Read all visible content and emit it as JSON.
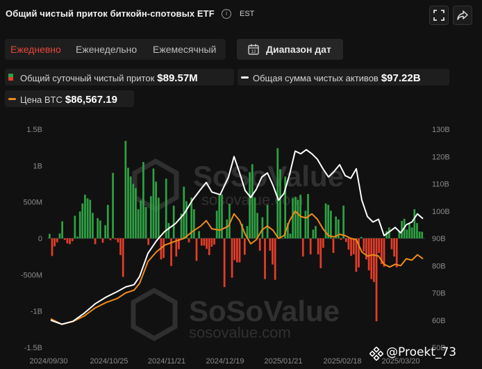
{
  "header": {
    "title": "Общий чистый приток биткойн-спотовых ETF",
    "info_glyph": "i",
    "timezone": "EST",
    "icons": [
      "info-icon",
      "expand-icon",
      "share-icon"
    ]
  },
  "periods": {
    "daily": "Ежедневно",
    "weekly": "Еженедельно",
    "monthly": "Ежемесячный",
    "active": "daily"
  },
  "range_button": {
    "label": "Диапазон дат",
    "icon": "calendar-icon"
  },
  "legend": {
    "inflow_label": "Общий суточный чистый приток",
    "inflow_value": "$89.57M",
    "assets_label": "Общая сумма чистых активов",
    "assets_value": "$97.22B",
    "btc_label": "Цена BTC",
    "btc_value": "$86,567.19"
  },
  "watermark": {
    "brand": "SoSoValue",
    "url": "sosovalue.com"
  },
  "credit": {
    "text": "@Proekt_73",
    "icon": "binance-icon"
  },
  "colors": {
    "inflow_positive": "#2ea043",
    "inflow_negative": "#e23d2a",
    "net_assets_line": "#ffffff",
    "btc_price_line": "#f08c1a",
    "active_period": "#e8473a",
    "background": "#111111"
  },
  "chart_data": {
    "type": "bar",
    "x_ticks": [
      "2024/09/30",
      "2024/10/25",
      "2024/11/21",
      "2024/12/19",
      "2025/01/21",
      "2025/02/18",
      "2025/03/20"
    ],
    "left_axis": {
      "ticks": [
        "1.5B",
        "1B",
        "500M",
        "0",
        "-500M",
        "-1B",
        "-1.5B"
      ],
      "range": [
        -1500,
        1500
      ],
      "unit": "M USD"
    },
    "right_axis": {
      "ticks": [
        "130B",
        "120B",
        "110B",
        "100B",
        "90B",
        "80B",
        "70B",
        "60B",
        "50B"
      ],
      "range": [
        50,
        130
      ],
      "unit": "B USD"
    },
    "series": [
      {
        "name": "Общий суточный чистый приток",
        "type": "bar",
        "axis": "left",
        "values": [
          62,
          -242,
          -110,
          -55,
          68,
          235,
          -20,
          -69,
          -80,
          -40,
          310,
          24,
          370,
          480,
          600,
          550,
          530,
          350,
          -80,
          278,
          245,
          -60,
          180,
          460,
          -25,
          900,
          -15,
          -55,
          -230,
          -530,
          1340,
          970,
          850,
          750,
          690,
          400,
          520,
          1050,
          430,
          -90,
          580,
          960,
          780,
          560,
          -290,
          -270,
          820,
          210,
          -380,
          450,
          -250,
          -150,
          340,
          710,
          510,
          -55,
          560,
          400,
          -310,
          100,
          -100,
          -100,
          -145,
          -230,
          -115,
          -85,
          380,
          590,
          605,
          -670,
          260,
          475,
          -540,
          -300,
          -330,
          -330,
          200,
          -225,
          170,
          910,
          1020,
          560,
          350,
          -170,
          290,
          -560,
          460,
          -170,
          -360,
          -570,
          1240,
          950,
          0,
          850,
          210,
          65,
          550,
          570,
          530,
          600,
          -250,
          380,
          610,
          -220,
          120,
          170,
          -220,
          -410,
          -130,
          480,
          460,
          380,
          -200,
          300,
          260,
          -20,
          450,
          -50,
          -155,
          -240,
          -220,
          -460,
          -400,
          20,
          -180,
          -290,
          -440,
          -560,
          -600,
          -1140,
          -200,
          -355,
          -390,
          100,
          150,
          -150,
          -250,
          -400,
          90,
          240,
          270,
          120,
          200,
          150,
          400,
          210,
          95,
          90
        ]
      },
      {
        "name": "Общая сумма чистых активов",
        "type": "line",
        "axis": "right",
        "x_range": [
          0,
          134
        ],
        "points": [
          [
            0,
            60.0
          ],
          [
            4,
            58.5
          ],
          [
            8,
            59.6
          ],
          [
            12,
            62.5
          ],
          [
            16,
            66.0
          ],
          [
            20,
            68.5
          ],
          [
            24,
            70.5
          ],
          [
            27,
            72.2
          ],
          [
            30,
            73.0
          ],
          [
            32,
            76.0
          ],
          [
            35,
            84.5
          ],
          [
            38,
            89.0
          ],
          [
            41,
            92.5
          ],
          [
            45,
            95.5
          ],
          [
            48,
            99.0
          ],
          [
            51,
            104.0
          ],
          [
            54,
            108.0
          ],
          [
            56,
            110.5
          ],
          [
            58,
            107.0
          ],
          [
            61,
            106.0
          ],
          [
            64,
            112.5
          ],
          [
            66,
            120.0
          ],
          [
            68,
            114.0
          ],
          [
            70,
            107.5
          ],
          [
            72,
            105.0
          ],
          [
            74,
            108.0
          ],
          [
            76,
            112.5
          ],
          [
            78,
            114.0
          ],
          [
            80,
            109.5
          ],
          [
            82,
            104.0
          ],
          [
            84,
            106.5
          ],
          [
            86,
            113.5
          ],
          [
            88,
            122.0
          ],
          [
            90,
            121.0
          ],
          [
            92,
            122.5
          ],
          [
            94,
            121.0
          ],
          [
            96,
            119.0
          ],
          [
            98,
            115.5
          ],
          [
            100,
            112.5
          ],
          [
            102,
            114.5
          ],
          [
            104,
            117.0
          ],
          [
            106,
            113.0
          ],
          [
            108,
            112.0
          ],
          [
            110,
            115.5
          ],
          [
            112,
            104.0
          ],
          [
            114,
            98.0
          ],
          [
            116,
            96.0
          ],
          [
            118,
            97.0
          ],
          [
            120,
            91.0
          ],
          [
            122,
            92.5
          ],
          [
            124,
            94.0
          ],
          [
            126,
            92.0
          ],
          [
            128,
            95.0
          ],
          [
            130,
            96.0
          ],
          [
            132,
            99.0
          ],
          [
            134,
            97.2
          ]
        ]
      },
      {
        "name": "Цена BTC",
        "type": "line",
        "axis": "right",
        "x_range": [
          0,
          134
        ],
        "points": [
          [
            0,
            60.5
          ],
          [
            4,
            58.5
          ],
          [
            8,
            59.5
          ],
          [
            12,
            61.5
          ],
          [
            16,
            64.5
          ],
          [
            20,
            66.5
          ],
          [
            24,
            68.0
          ],
          [
            27,
            70.0
          ],
          [
            30,
            71.0
          ],
          [
            32,
            73.5
          ],
          [
            35,
            81.5
          ],
          [
            38,
            85.0
          ],
          [
            41,
            87.5
          ],
          [
            45,
            89.0
          ],
          [
            48,
            90.0
          ],
          [
            51,
            92.5
          ],
          [
            54,
            94.5
          ],
          [
            56,
            96.5
          ],
          [
            58,
            93.5
          ],
          [
            61,
            93.0
          ],
          [
            64,
            94.5
          ],
          [
            66,
            99.0
          ],
          [
            68,
            96.5
          ],
          [
            70,
            91.5
          ],
          [
            72,
            88.0
          ],
          [
            74,
            89.5
          ],
          [
            76,
            93.0
          ],
          [
            78,
            94.5
          ],
          [
            80,
            93.0
          ],
          [
            82,
            90.0
          ],
          [
            84,
            91.0
          ],
          [
            86,
            96.5
          ],
          [
            88,
            100.0
          ],
          [
            90,
            98.0
          ],
          [
            92,
            97.5
          ],
          [
            94,
            99.0
          ],
          [
            96,
            97.0
          ],
          [
            98,
            93.5
          ],
          [
            100,
            91.0
          ],
          [
            102,
            90.5
          ],
          [
            104,
            91.5
          ],
          [
            106,
            91.0
          ],
          [
            108,
            90.0
          ],
          [
            110,
            89.5
          ],
          [
            112,
            85.0
          ],
          [
            114,
            83.5
          ],
          [
            116,
            84.0
          ],
          [
            118,
            83.5
          ],
          [
            120,
            80.5
          ],
          [
            122,
            79.5
          ],
          [
            124,
            80.5
          ],
          [
            126,
            80.0
          ],
          [
            128,
            82.5
          ],
          [
            130,
            82.0
          ],
          [
            132,
            84.0
          ],
          [
            134,
            82.5
          ]
        ]
      }
    ],
    "grid": false,
    "legend_position": "top"
  }
}
